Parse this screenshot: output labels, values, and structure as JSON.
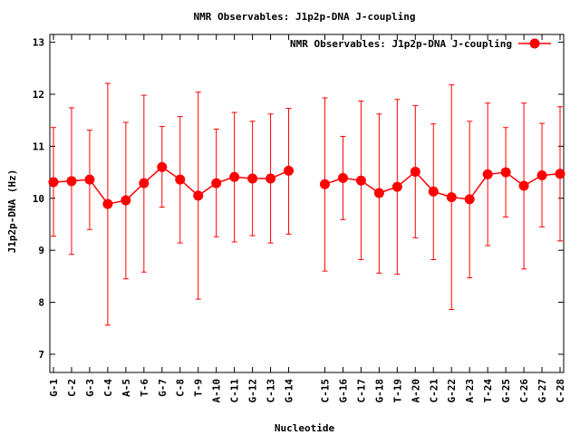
{
  "chart_data": {
    "type": "line",
    "title": "NMR Observables: J1p2p-DNA J-coupling",
    "xlabel": "Nucleotide",
    "ylabel": "J1p2p-DNA (Hz)",
    "ylim": [
      6.65,
      13.15
    ],
    "yticks": [
      7,
      8,
      9,
      10,
      11,
      12,
      13
    ],
    "grid": false,
    "legend_position": "top-right",
    "series_color": "#ff0000",
    "series": [
      {
        "name": "NMR Observables: J1p2p-DNA J-coupling",
        "points": [
          {
            "label": "G-1",
            "x": 1,
            "y": 10.31,
            "err_low": 9.27,
            "err_high": 11.36
          },
          {
            "label": "C-2",
            "x": 2,
            "y": 10.33,
            "err_low": 8.92,
            "err_high": 11.74
          },
          {
            "label": "G-3",
            "x": 3,
            "y": 10.36,
            "err_low": 9.4,
            "err_high": 11.31
          },
          {
            "label": "C-4",
            "x": 4,
            "y": 9.89,
            "err_low": 7.56,
            "err_high": 12.21
          },
          {
            "label": "A-5",
            "x": 5,
            "y": 9.96,
            "err_low": 8.45,
            "err_high": 11.46
          },
          {
            "label": "T-6",
            "x": 6,
            "y": 10.29,
            "err_low": 8.58,
            "err_high": 11.98
          },
          {
            "label": "G-7",
            "x": 7,
            "y": 10.6,
            "err_low": 9.83,
            "err_high": 11.38
          },
          {
            "label": "C-8",
            "x": 8,
            "y": 10.36,
            "err_low": 9.14,
            "err_high": 11.57
          },
          {
            "label": "T-9",
            "x": 9,
            "y": 10.05,
            "err_low": 8.06,
            "err_high": 12.04
          },
          {
            "label": "A-10",
            "x": 10,
            "y": 10.29,
            "err_low": 9.26,
            "err_high": 11.33
          },
          {
            "label": "C-11",
            "x": 11,
            "y": 10.41,
            "err_low": 9.16,
            "err_high": 11.65
          },
          {
            "label": "G-12",
            "x": 12,
            "y": 10.38,
            "err_low": 9.28,
            "err_high": 11.48
          },
          {
            "label": "C-13",
            "x": 13,
            "y": 10.38,
            "err_low": 9.14,
            "err_high": 11.62
          },
          {
            "label": "G-14",
            "x": 14,
            "y": 10.53,
            "err_low": 9.31,
            "err_high": 11.73
          },
          {
            "label": "C-15",
            "x": 16,
            "y": 10.27,
            "err_low": 8.6,
            "err_high": 11.93
          },
          {
            "label": "G-16",
            "x": 17,
            "y": 10.39,
            "err_low": 9.59,
            "err_high": 11.19
          },
          {
            "label": "C-17",
            "x": 18,
            "y": 10.34,
            "err_low": 8.82,
            "err_high": 11.87
          },
          {
            "label": "G-18",
            "x": 19,
            "y": 10.1,
            "err_low": 8.56,
            "err_high": 11.62
          },
          {
            "label": "T-19",
            "x": 20,
            "y": 10.22,
            "err_low": 8.54,
            "err_high": 11.9
          },
          {
            "label": "A-20",
            "x": 21,
            "y": 10.51,
            "err_low": 9.24,
            "err_high": 11.78
          },
          {
            "label": "C-21",
            "x": 22,
            "y": 10.13,
            "err_low": 8.82,
            "err_high": 11.43
          },
          {
            "label": "G-22",
            "x": 23,
            "y": 10.02,
            "err_low": 7.86,
            "err_high": 12.18
          },
          {
            "label": "A-23",
            "x": 24,
            "y": 9.98,
            "err_low": 8.47,
            "err_high": 11.48
          },
          {
            "label": "T-24",
            "x": 25,
            "y": 10.46,
            "err_low": 9.09,
            "err_high": 11.83
          },
          {
            "label": "G-25",
            "x": 26,
            "y": 10.5,
            "err_low": 9.64,
            "err_high": 11.36
          },
          {
            "label": "C-26",
            "x": 27,
            "y": 10.24,
            "err_low": 8.64,
            "err_high": 11.83
          },
          {
            "label": "G-27",
            "x": 28,
            "y": 10.44,
            "err_low": 9.45,
            "err_high": 11.44
          },
          {
            "label": "C-28",
            "x": 29,
            "y": 10.47,
            "err_low": 9.18,
            "err_high": 11.76
          }
        ]
      }
    ]
  }
}
